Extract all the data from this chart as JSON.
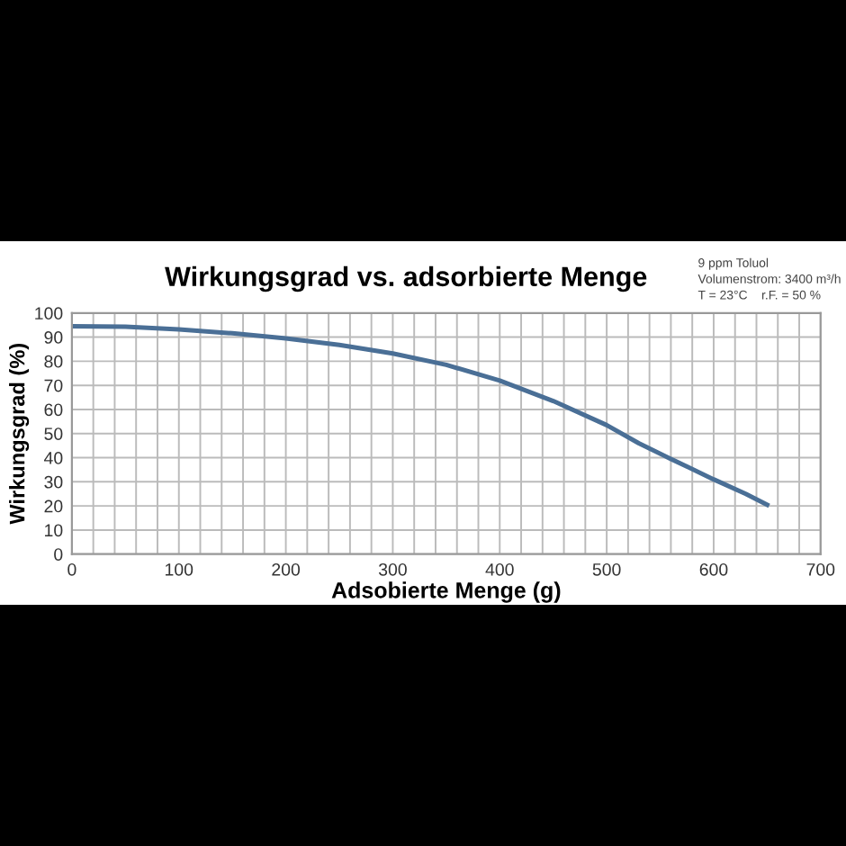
{
  "chart_data": {
    "type": "line",
    "title": "Wirkungsgrad vs. adsorbierte Menge",
    "xlabel": "Adsobierte Menge (g)",
    "ylabel": "Wirkungsgrad (%)",
    "annotations": [
      "9 ppm Toluol",
      "Volumenstrom: 3400 m³/h",
      "T = 23°C    r.F. = 50 %"
    ],
    "series": [
      {
        "color": "#4a6f96",
        "x": [
          0,
          50,
          100,
          150,
          200,
          250,
          300,
          350,
          400,
          450,
          500,
          530,
          560,
          600,
          630,
          650
        ],
        "values": [
          94.5,
          94.3,
          93.2,
          91.6,
          89.5,
          86.8,
          83.2,
          78.5,
          72,
          63.5,
          53.5,
          46,
          39.5,
          31,
          25,
          20.5
        ]
      }
    ],
    "xlim": [
      0,
      700
    ],
    "xticks": [
      0,
      {
        "value": 20,
        "label": null
      },
      {
        "value": 40,
        "label": null
      },
      {
        "value": 60,
        "label": null
      },
      {
        "value": 80,
        "label": null
      },
      100,
      {
        "value": 120,
        "label": null
      },
      {
        "value": 140,
        "label": null
      },
      {
        "value": 160,
        "label": null
      },
      {
        "value": 180,
        "label": null
      },
      200,
      {
        "value": 220,
        "label": null
      },
      {
        "value": 240,
        "label": null
      },
      {
        "value": 260,
        "label": null
      },
      {
        "value": 280,
        "label": null
      },
      300,
      {
        "value": 320,
        "label": null
      },
      {
        "value": 340,
        "label": null
      },
      {
        "value": 360,
        "label": null
      },
      {
        "value": 380,
        "label": null
      },
      400,
      {
        "value": 420,
        "label": null
      },
      {
        "value": 440,
        "label": null
      },
      {
        "value": 460,
        "label": null
      },
      {
        "value": 480,
        "label": null
      },
      500,
      {
        "value": 520,
        "label": null
      },
      {
        "value": 540,
        "label": null
      },
      {
        "value": 560,
        "label": null
      },
      {
        "value": 580,
        "label": null
      },
      600,
      {
        "value": 620,
        "label": null
      },
      {
        "value": 640,
        "label": null
      },
      {
        "value": 660,
        "label": null
      },
      {
        "value": 680,
        "label": null
      },
      700
    ],
    "ylim": [
      0,
      100
    ],
    "yticks": [
      0,
      10,
      20,
      30,
      40,
      50,
      60,
      70,
      80,
      90,
      100
    ],
    "grid": true,
    "legend": false,
    "marker": "none",
    "line_style": "solid"
  }
}
